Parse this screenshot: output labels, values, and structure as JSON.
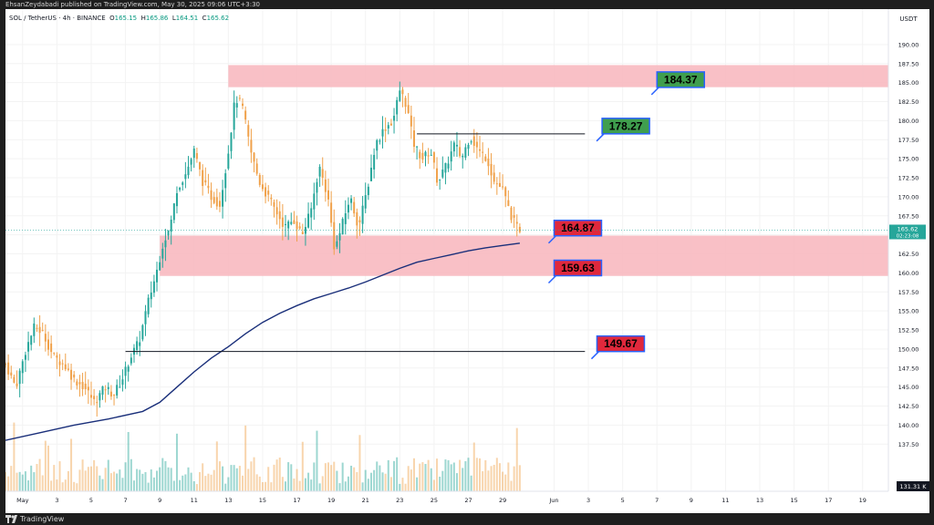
{
  "publisher_line": "EhsanZeydabadi published on TradingView.com, May 30, 2025 09:06 UTC+3:30",
  "header": {
    "symbol": "SOL / TetherUS · 4h · BINANCE",
    "open_label": "O",
    "open": "165.15",
    "high_label": "H",
    "high": "165.86",
    "low_label": "L",
    "low": "164.51",
    "close_label": "C",
    "close": "165.62"
  },
  "footer": {
    "brand": "TradingView"
  },
  "colors": {
    "bull": "#26a69a",
    "bear": "#f0a14a",
    "zone": "#f8b5bc",
    "ma": "#1a2f7a",
    "green_label": "#3f9e4e",
    "red_label": "#e0283c"
  },
  "chart_data": {
    "type": "candlestick",
    "symbol": "SOL / TetherUS",
    "interval": "4h",
    "exchange": "BINANCE",
    "currency": "USDT",
    "ylim": [
      131.31,
      192.5
    ],
    "price_ticks": [
      137.5,
      140.0,
      142.5,
      145.0,
      147.5,
      150.0,
      152.5,
      155.0,
      157.5,
      160.0,
      162.5,
      165.0,
      167.5,
      170.0,
      172.5,
      175.0,
      177.5,
      180.0,
      182.5,
      185.0,
      187.5,
      190.0
    ],
    "price_tick_labels": [
      "137.50",
      "140.00",
      "142.50",
      "145.00",
      "147.50",
      "150.00",
      "152.50",
      "155.00",
      "157.50",
      "160.00",
      "162.50",
      "165.00",
      "167.50",
      "170.00",
      "172.50",
      "175.00",
      "177.50",
      "180.00",
      "182.50",
      "185.00",
      "187.50",
      "190.00"
    ],
    "axis_unit_label": "USDT",
    "last_price": "165.62",
    "countdown": "02:23:08",
    "bottom_price_label": "131.31 K",
    "time_axis_labels": [
      {
        "text": "May",
        "day": 1
      },
      {
        "text": "3",
        "day": 3
      },
      {
        "text": "5",
        "day": 5
      },
      {
        "text": "7",
        "day": 7
      },
      {
        "text": "9",
        "day": 9
      },
      {
        "text": "11",
        "day": 11
      },
      {
        "text": "13",
        "day": 13
      },
      {
        "text": "15",
        "day": 15
      },
      {
        "text": "17",
        "day": 17
      },
      {
        "text": "19",
        "day": 19
      },
      {
        "text": "21",
        "day": 21
      },
      {
        "text": "23",
        "day": 23
      },
      {
        "text": "25",
        "day": 25
      },
      {
        "text": "27",
        "day": 27
      },
      {
        "text": "29",
        "day": 29
      },
      {
        "text": "Jun",
        "day": 32
      },
      {
        "text": "3",
        "day": 34
      },
      {
        "text": "5",
        "day": 36
      },
      {
        "text": "7",
        "day": 38
      },
      {
        "text": "9",
        "day": 40
      },
      {
        "text": "11",
        "day": 42
      },
      {
        "text": "13",
        "day": 44
      },
      {
        "text": "15",
        "day": 46
      },
      {
        "text": "17",
        "day": 48
      },
      {
        "text": "19",
        "day": 50
      }
    ],
    "day_range": [
      0.0,
      51.5
    ],
    "price_path": [
      {
        "day": 0.0,
        "price": 148
      },
      {
        "day": 0.6,
        "price": 145
      },
      {
        "day": 1.2,
        "price": 150
      },
      {
        "day": 1.7,
        "price": 153
      },
      {
        "day": 2.2,
        "price": 152
      },
      {
        "day": 2.8,
        "price": 149
      },
      {
        "day": 3.4,
        "price": 148
      },
      {
        "day": 4.0,
        "price": 146
      },
      {
        "day": 4.6,
        "price": 145
      },
      {
        "day": 5.2,
        "price": 143
      },
      {
        "day": 5.8,
        "price": 145
      },
      {
        "day": 6.3,
        "price": 144
      },
      {
        "day": 6.8,
        "price": 146
      },
      {
        "day": 7.3,
        "price": 149
      },
      {
        "day": 7.8,
        "price": 151
      },
      {
        "day": 8.3,
        "price": 156
      },
      {
        "day": 8.8,
        "price": 160
      },
      {
        "day": 9.2,
        "price": 164
      },
      {
        "day": 9.6,
        "price": 166
      },
      {
        "day": 10.0,
        "price": 171
      },
      {
        "day": 10.5,
        "price": 173
      },
      {
        "day": 11.0,
        "price": 176
      },
      {
        "day": 11.5,
        "price": 172
      },
      {
        "day": 12.0,
        "price": 170
      },
      {
        "day": 12.5,
        "price": 169
      },
      {
        "day": 13.0,
        "price": 176
      },
      {
        "day": 13.4,
        "price": 183
      },
      {
        "day": 13.8,
        "price": 182
      },
      {
        "day": 14.3,
        "price": 176
      },
      {
        "day": 14.8,
        "price": 172
      },
      {
        "day": 15.3,
        "price": 170
      },
      {
        "day": 15.8,
        "price": 168
      },
      {
        "day": 16.3,
        "price": 166
      },
      {
        "day": 16.8,
        "price": 167
      },
      {
        "day": 17.3,
        "price": 165
      },
      {
        "day": 17.8,
        "price": 168
      },
      {
        "day": 18.3,
        "price": 174
      },
      {
        "day": 18.8,
        "price": 170
      },
      {
        "day": 19.2,
        "price": 163
      },
      {
        "day": 19.6,
        "price": 166
      },
      {
        "day": 20.1,
        "price": 170
      },
      {
        "day": 20.6,
        "price": 166
      },
      {
        "day": 21.1,
        "price": 171
      },
      {
        "day": 21.6,
        "price": 177
      },
      {
        "day": 22.1,
        "price": 179
      },
      {
        "day": 22.6,
        "price": 180
      },
      {
        "day": 23.0,
        "price": 184
      },
      {
        "day": 23.4,
        "price": 182
      },
      {
        "day": 23.8,
        "price": 177
      },
      {
        "day": 24.3,
        "price": 175
      },
      {
        "day": 24.8,
        "price": 176
      },
      {
        "day": 25.2,
        "price": 172
      },
      {
        "day": 25.7,
        "price": 174
      },
      {
        "day": 26.2,
        "price": 177
      },
      {
        "day": 26.6,
        "price": 175
      },
      {
        "day": 27.1,
        "price": 178
      },
      {
        "day": 27.6,
        "price": 176
      },
      {
        "day": 28.1,
        "price": 175
      },
      {
        "day": 28.5,
        "price": 172
      },
      {
        "day": 29.0,
        "price": 171
      },
      {
        "day": 29.4,
        "price": 168
      },
      {
        "day": 29.8,
        "price": 166
      },
      {
        "day": 30.1,
        "price": 165.6
      }
    ],
    "moving_average": [
      {
        "day": 0.0,
        "price": 138.0
      },
      {
        "day": 2.0,
        "price": 139.0
      },
      {
        "day": 4.0,
        "price": 140.0
      },
      {
        "day": 6.0,
        "price": 140.8
      },
      {
        "day": 8.0,
        "price": 141.8
      },
      {
        "day": 9.0,
        "price": 143.0
      },
      {
        "day": 10.0,
        "price": 145.0
      },
      {
        "day": 11.0,
        "price": 147.0
      },
      {
        "day": 12.0,
        "price": 148.8
      },
      {
        "day": 13.0,
        "price": 150.3
      },
      {
        "day": 14.0,
        "price": 152.0
      },
      {
        "day": 15.0,
        "price": 153.5
      },
      {
        "day": 16.0,
        "price": 154.7
      },
      {
        "day": 17.0,
        "price": 155.7
      },
      {
        "day": 18.0,
        "price": 156.6
      },
      {
        "day": 19.0,
        "price": 157.3
      },
      {
        "day": 20.0,
        "price": 158.0
      },
      {
        "day": 21.0,
        "price": 158.8
      },
      {
        "day": 22.0,
        "price": 159.7
      },
      {
        "day": 23.0,
        "price": 160.6
      },
      {
        "day": 24.0,
        "price": 161.4
      },
      {
        "day": 25.0,
        "price": 161.9
      },
      {
        "day": 26.0,
        "price": 162.4
      },
      {
        "day": 27.0,
        "price": 162.9
      },
      {
        "day": 28.0,
        "price": 163.3
      },
      {
        "day": 29.0,
        "price": 163.6
      },
      {
        "day": 30.0,
        "price": 163.9
      }
    ],
    "zones": [
      {
        "name": "upper-resistance-zone",
        "day_start": 13.0,
        "day_end": 51.5,
        "low": 184.4,
        "high": 187.3
      },
      {
        "name": "support-zone",
        "day_start": 9.0,
        "day_end": 51.5,
        "low": 159.6,
        "high": 164.9
      }
    ],
    "horizontal_lines": [
      {
        "name": "line-178-27",
        "day_start": 24.0,
        "day_end": 33.8,
        "price": 178.27
      },
      {
        "name": "line-149-67",
        "day_start": 7.0,
        "day_end": 33.8,
        "price": 149.67
      }
    ],
    "level_labels": [
      {
        "text": "184.37",
        "price": 184.37,
        "kind": "green",
        "day": 38.0
      },
      {
        "text": "178.27",
        "price": 178.27,
        "kind": "green",
        "day": 34.8
      },
      {
        "text": "164.87",
        "price": 164.87,
        "kind": "red",
        "day": 32.0
      },
      {
        "text": "159.63",
        "price": 159.63,
        "kind": "red",
        "day": 32.0
      },
      {
        "text": "149.67",
        "price": 149.67,
        "kind": "red",
        "day": 34.5
      }
    ],
    "volume_scale_max": 100
  }
}
